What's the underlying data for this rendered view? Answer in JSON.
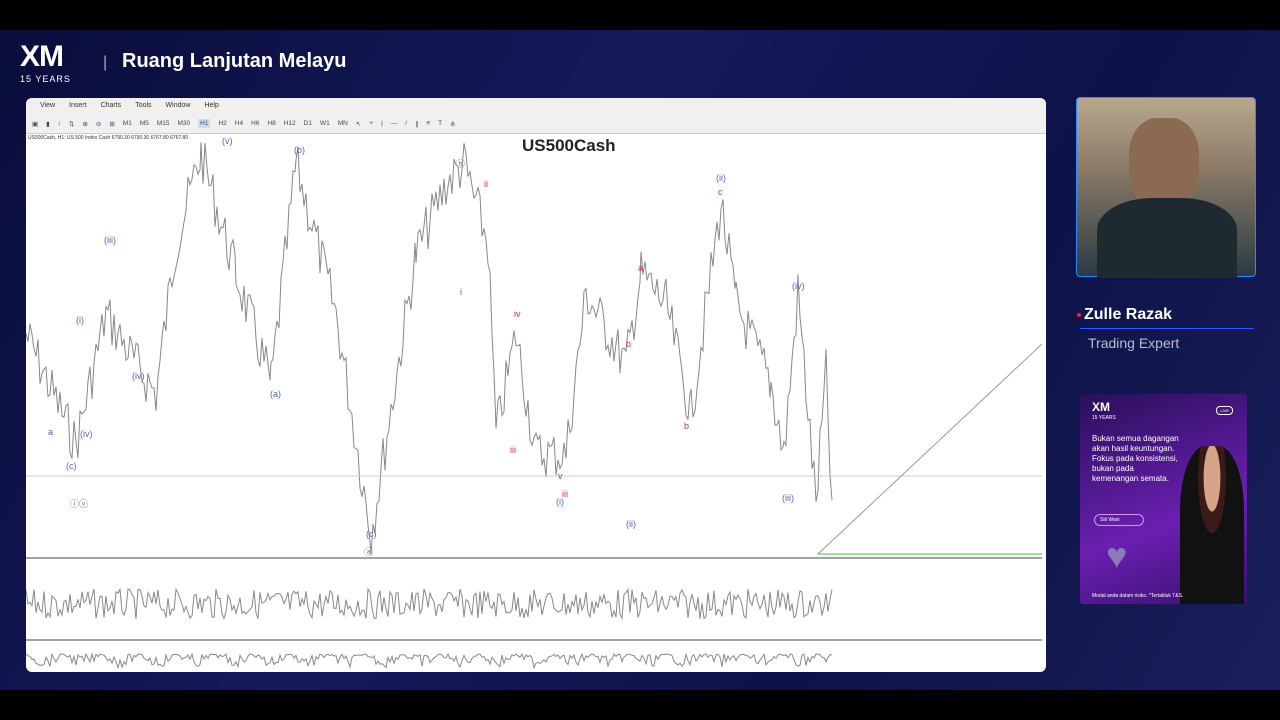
{
  "broadcast": {
    "logo_text": "XM",
    "logo_years": "15 YEARS",
    "show_title": "Ruang Lanjutan Melayu",
    "separator": "|"
  },
  "platform": {
    "menu": [
      "View",
      "Insert",
      "Charts",
      "Tools",
      "Window",
      "Help"
    ],
    "timeframes": [
      "M1",
      "M5",
      "M15",
      "M30",
      "H1",
      "H2",
      "H4",
      "H6",
      "H8",
      "H12",
      "D1",
      "W1",
      "MN"
    ],
    "active_timeframe": "H1",
    "chart_title": "US500Cash",
    "chart_info": "US500Cash, H1: US 500 Index Cash 6790.30 6790.30 6767.80 6767.80",
    "wave_labels": [
      "(v)",
      "(b)",
      "b",
      "ii",
      "(iii)",
      "(i)",
      "(iv)",
      "(a)",
      "(ii)",
      "(c)",
      "iv",
      "(c)",
      "a",
      "iii",
      "(iv)",
      "(ii)",
      "c",
      "a",
      "(iv)",
      "iii",
      "b",
      "v",
      "(i)",
      "(iii)",
      "ⓑ",
      "ⓐ",
      "ⓘⓥ",
      "i"
    ]
  },
  "presenter": {
    "name": "Zulle Razak",
    "role": "Trading Expert"
  },
  "ad": {
    "logo_text": "XM",
    "logo_years": "15 YEARS",
    "badge": "LIVE",
    "headline": "Bukan semua dagangan akan hasil keuntungan. Fokus pada konsistensi, bukan pada kemenangan semata.",
    "person": "Siti Wani",
    "disclaimer": "Modal anda dalam risiko. *Tertakluk T&S."
  }
}
